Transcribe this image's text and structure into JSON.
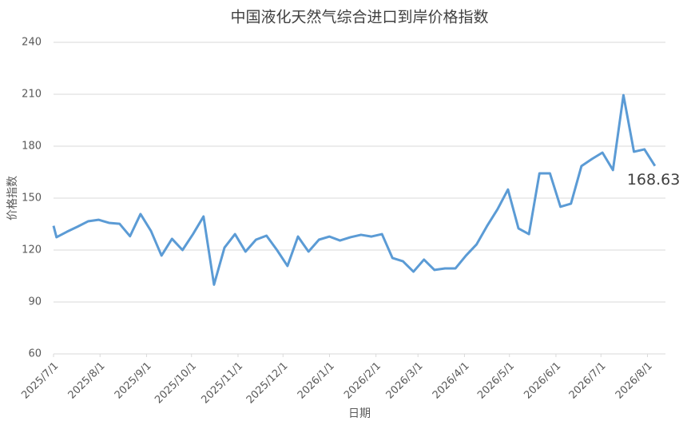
{
  "chart_data": {
    "type": "line",
    "title": "中国液化天然气综合进口到岸价格指数",
    "x_label": "日期",
    "y_label": "价格指数",
    "x": [
      "2025/7/1",
      "2025/7/3",
      "2025/7/10",
      "2025/7/17",
      "2025/7/24",
      "2025/7/31",
      "2025/8/7",
      "2025/8/14",
      "2025/8/21",
      "2025/8/28",
      "2025/9/4",
      "2025/9/11",
      "2025/9/18",
      "2025/9/25",
      "2025/10/2",
      "2025/10/9",
      "2025/10/16",
      "2025/10/23",
      "2025/10/30",
      "2025/11/6",
      "2025/11/13",
      "2025/11/20",
      "2025/11/27",
      "2025/12/4",
      "2025/12/11",
      "2025/12/18",
      "2025/12/25",
      "2026/1/1",
      "2026/1/8",
      "2026/1/15",
      "2026/1/22",
      "2026/1/29",
      "2026/2/5",
      "2026/2/12",
      "2026/2/19",
      "2026/2/26",
      "2026/3/5",
      "2026/3/12",
      "2026/3/19",
      "2026/3/26",
      "2026/4/2",
      "2026/4/9",
      "2026/4/16",
      "2026/4/23",
      "2026/4/30",
      "2026/5/7",
      "2026/5/14",
      "2026/5/21",
      "2026/5/28",
      "2026/6/4",
      "2026/6/11",
      "2026/6/18",
      "2026/6/25",
      "2026/7/2",
      "2026/7/9",
      "2026/7/16",
      "2026/7/23",
      "2026/7/30",
      "2026/8/6"
    ],
    "series": [
      {
        "name": "价格指数",
        "color": "#5b9bd5",
        "values": [
          134,
          127.4,
          130.6,
          133.5,
          136.6,
          137.5,
          135.7,
          135.2,
          128,
          140.8,
          131,
          116.8,
          126.5,
          120,
          129.2,
          139.4,
          100,
          121.4,
          129.2,
          119.1,
          126,
          128.3,
          120,
          110.8,
          127.8,
          119.1,
          126,
          127.8,
          125.5,
          127.4,
          128.8,
          127.8,
          129.2,
          115.4,
          113.5,
          107.5,
          114.5,
          108.5,
          109.4,
          109.4,
          116.8,
          123.2,
          133.8,
          143.5,
          155,
          132.5,
          129.2,
          164.3,
          164.3,
          145,
          146.8,
          168.5,
          172.6,
          176.3,
          166.2,
          209.5,
          176.8,
          178.2,
          168.63
        ]
      }
    ],
    "xlim": [
      "2025/7/1",
      "2026/8/13"
    ],
    "xticks": [
      "2025/7/1",
      "2025/8/1",
      "2025/9/1",
      "2025/10/1",
      "2025/11/1",
      "2025/12/1",
      "2026/1/1",
      "2026/2/1",
      "2026/3/1",
      "2026/4/1",
      "2026/5/1",
      "2026/6/1",
      "2026/7/1",
      "2026/8/1"
    ],
    "ylim": [
      60,
      240
    ],
    "yticks": [
      60,
      90,
      120,
      150,
      180,
      210,
      240
    ],
    "grid": true
  }
}
